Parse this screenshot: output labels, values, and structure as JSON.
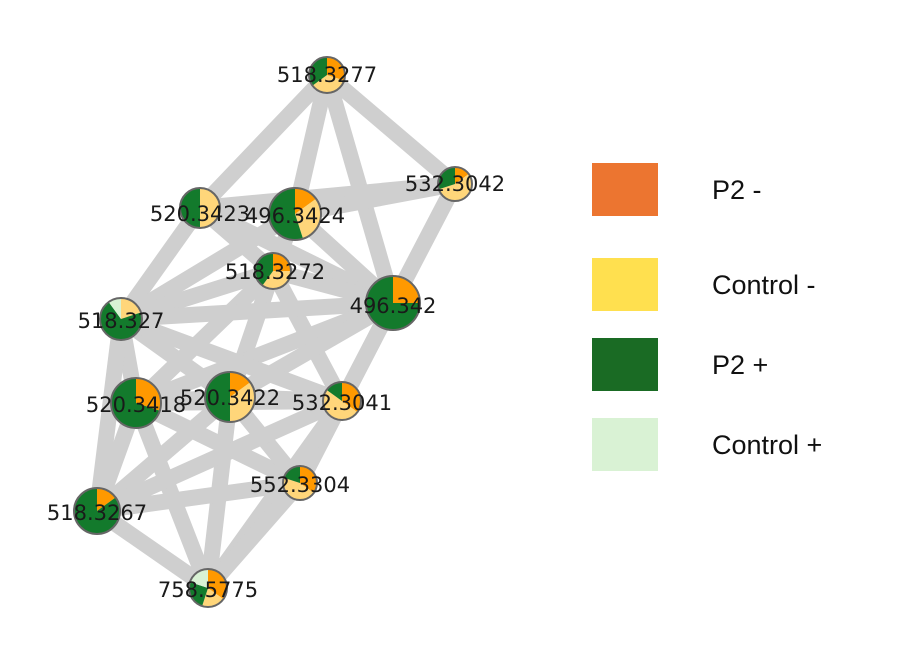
{
  "colors": {
    "p2_minus": "#ff9900",
    "control_minus": "#ffd67a",
    "p2_plus": "#137a2c",
    "control_plus": "#d9f2d4",
    "edge": "#cfcfcf"
  },
  "legend": [
    {
      "label": "P2 -",
      "color": "#ec7530"
    },
    {
      "label": "Control -",
      "color": "#ffe04f"
    },
    {
      "label": "P2 +",
      "color": "#1a6b24"
    },
    {
      "label": "Control +",
      "color": "#d9f2d4"
    }
  ],
  "nodes": [
    {
      "id": "n1",
      "label": "518.3277",
      "fractions": [
        0.3,
        0.35,
        0.35,
        0.0
      ]
    },
    {
      "id": "n2",
      "label": "532.3042",
      "fractions": [
        0.15,
        0.55,
        0.3,
        0.0
      ]
    },
    {
      "id": "n3",
      "label": "520.3423",
      "fractions": [
        0.0,
        0.5,
        0.5,
        0.0
      ]
    },
    {
      "id": "n4",
      "label": "496.3424",
      "fractions": [
        0.15,
        0.3,
        0.55,
        0.0
      ]
    },
    {
      "id": "n5",
      "label": "518.3272",
      "fractions": [
        0.25,
        0.35,
        0.4,
        0.0
      ]
    },
    {
      "id": "n6",
      "label": "496.342",
      "fractions": [
        0.25,
        0.0,
        0.75,
        0.0
      ]
    },
    {
      "id": "n7",
      "label": "518.327",
      "fractions": [
        0.0,
        0.2,
        0.7,
        0.1
      ]
    },
    {
      "id": "n8",
      "label": "520.3418",
      "fractions": [
        0.3,
        0.0,
        0.7,
        0.0
      ]
    },
    {
      "id": "n9",
      "label": "520.3422",
      "fractions": [
        0.15,
        0.35,
        0.5,
        0.0
      ]
    },
    {
      "id": "n10",
      "label": "532.3041",
      "fractions": [
        0.35,
        0.5,
        0.15,
        0.0
      ]
    },
    {
      "id": "n11",
      "label": "552.3304",
      "fractions": [
        0.35,
        0.45,
        0.2,
        0.0
      ]
    },
    {
      "id": "n12",
      "label": "518.3267",
      "fractions": [
        0.15,
        0.0,
        0.85,
        0.0
      ]
    },
    {
      "id": "n13",
      "label": "758.5775",
      "fractions": [
        0.35,
        0.2,
        0.25,
        0.2
      ]
    }
  ],
  "edges": [
    [
      "n1",
      "n2"
    ],
    [
      "n1",
      "n3"
    ],
    [
      "n1",
      "n4"
    ],
    [
      "n1",
      "n6"
    ],
    [
      "n2",
      "n3"
    ],
    [
      "n2",
      "n4"
    ],
    [
      "n2",
      "n6"
    ],
    [
      "n3",
      "n4"
    ],
    [
      "n3",
      "n5"
    ],
    [
      "n3",
      "n7"
    ],
    [
      "n3",
      "n6"
    ],
    [
      "n4",
      "n5"
    ],
    [
      "n4",
      "n6"
    ],
    [
      "n4",
      "n7"
    ],
    [
      "n5",
      "n6"
    ],
    [
      "n5",
      "n7"
    ],
    [
      "n5",
      "n8"
    ],
    [
      "n5",
      "n9"
    ],
    [
      "n5",
      "n10"
    ],
    [
      "n6",
      "n7"
    ],
    [
      "n6",
      "n8"
    ],
    [
      "n6",
      "n9"
    ],
    [
      "n6",
      "n10"
    ],
    [
      "n6",
      "n11"
    ],
    [
      "n7",
      "n8"
    ],
    [
      "n7",
      "n9"
    ],
    [
      "n7",
      "n10"
    ],
    [
      "n7",
      "n12"
    ],
    [
      "n8",
      "n9"
    ],
    [
      "n8",
      "n10"
    ],
    [
      "n8",
      "n11"
    ],
    [
      "n8",
      "n12"
    ],
    [
      "n8",
      "n13"
    ],
    [
      "n9",
      "n10"
    ],
    [
      "n9",
      "n11"
    ],
    [
      "n9",
      "n12"
    ],
    [
      "n9",
      "n13"
    ],
    [
      "n10",
      "n11"
    ],
    [
      "n10",
      "n12"
    ],
    [
      "n10",
      "n13"
    ],
    [
      "n11",
      "n12"
    ],
    [
      "n11",
      "n13"
    ],
    [
      "n12",
      "n13"
    ]
  ]
}
